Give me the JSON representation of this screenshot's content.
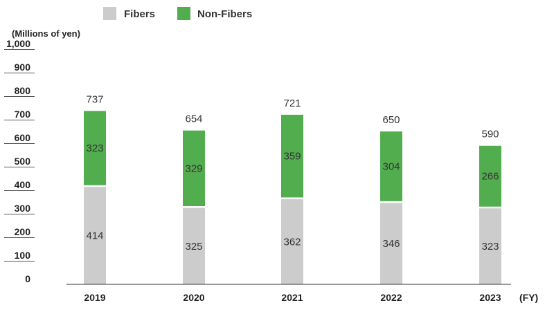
{
  "chart_data": {
    "type": "bar",
    "stacked": true,
    "unit_label": "(Millions of yen)",
    "x_axis_suffix": "(FY)",
    "categories": [
      "2019",
      "2020",
      "2021",
      "2022",
      "2023"
    ],
    "series": [
      {
        "name": "Fibers",
        "values": [
          414,
          325,
          362,
          346,
          323
        ],
        "color": "#cccccc"
      },
      {
        "name": "Non-Fibers",
        "values": [
          323,
          329,
          359,
          304,
          266
        ],
        "color": "#52ad4f"
      }
    ],
    "totals": [
      737,
      654,
      721,
      650,
      590
    ],
    "ylim": [
      0,
      1000
    ],
    "yticks": [
      0,
      100,
      200,
      300,
      400,
      500,
      600,
      700,
      800,
      900,
      1000
    ],
    "ytick_labels": [
      "0",
      "100",
      "200",
      "300",
      "400",
      "500",
      "600",
      "700",
      "800",
      "900",
      "1,000"
    ],
    "legend_position": "top-left"
  }
}
